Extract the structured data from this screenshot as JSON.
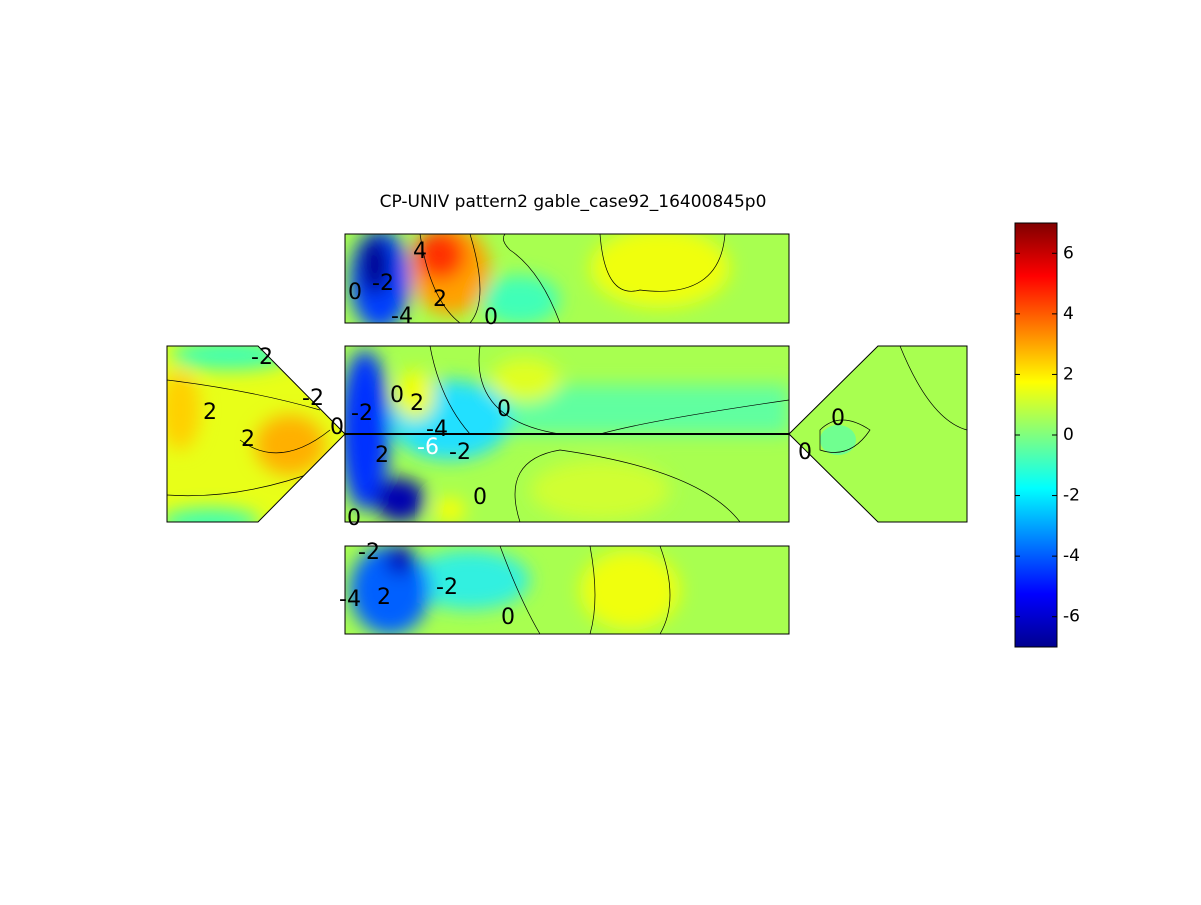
{
  "chart_data": {
    "type": "contour",
    "title": "CP-UNIV pattern2 gable_case92_16400845p0",
    "colorbar": {
      "clim": [
        -7,
        7
      ],
      "ticks": [
        -6,
        -4,
        -2,
        0,
        2,
        4,
        6
      ],
      "colormap": "jet"
    },
    "contour_labels": [
      "4",
      "-2",
      "0",
      "2",
      "-4",
      "0",
      "-2",
      "-2",
      "2",
      "2",
      "0",
      "0",
      "2",
      "0",
      "-2",
      "-6",
      "-4",
      "-2",
      "2",
      "0",
      "0",
      "0",
      "0",
      "-2",
      "-4",
      "2",
      "-2",
      "0"
    ]
  }
}
